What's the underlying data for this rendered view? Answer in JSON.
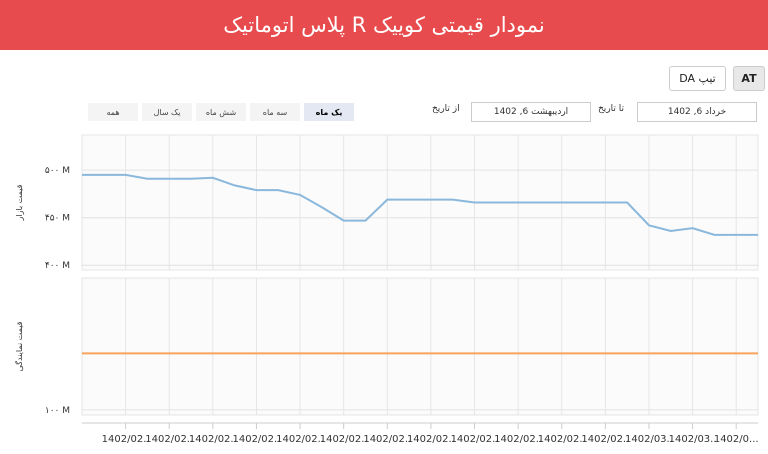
{
  "header": {
    "title": "نمودار قیمتی کوییک R پلاس اتوماتیک"
  },
  "trim_buttons": [
    "AT",
    "تیپ DA"
  ],
  "selected_trim": 0,
  "range_buttons": [
    "همه",
    "یک سال",
    "شش ماه",
    "سه ماه",
    "یک ماه"
  ],
  "selected_range": 4,
  "date_range": {
    "from_label": "از تاریخ",
    "from_value": "اردیبهشت 6, 1402",
    "to_label": "تا تاریخ",
    "to_value": "خرداد 6, 1402"
  },
  "chart_data": {
    "type": "line",
    "categories": [
      null,
      null,
      "1402/02..",
      null,
      "1402/02..",
      null,
      "1402/02..",
      null,
      "1402/02..",
      null,
      "1402/02..",
      null,
      "1402/02..",
      null,
      "1402/02..",
      null,
      "1402/02..",
      null,
      "1402/02..",
      null,
      "1402/02..",
      null,
      "1402/02..",
      null,
      "1402/02..",
      null,
      "1402/03..",
      null,
      "1402/03..",
      null,
      "1402/0...",
      null
    ],
    "ylabel": "قیمت بازار",
    "y2label": "قیمت نمایندگی",
    "ylim": [
      395,
      537
    ],
    "yticks": [
      {
        "value": 400,
        "label": "۴۰۰ M"
      },
      {
        "value": 450,
        "label": "۴۵۰ M"
      },
      {
        "value": 500,
        "label": "۵۰۰ M"
      }
    ],
    "y2lim": [
      94,
      254
    ],
    "y2ticks": [
      {
        "value": 100,
        "label": "۱۰۰ M"
      }
    ],
    "grid": true,
    "series": [
      {
        "color": "#8ab8dc",
        "values": [
          495,
          495,
          495,
          491,
          491,
          491,
          492,
          484,
          479,
          479,
          474,
          461,
          447,
          447,
          469,
          469,
          469,
          469,
          466,
          466,
          466,
          466,
          466,
          466,
          466,
          466,
          442,
          436,
          439,
          432,
          432,
          432
        ]
      },
      {
        "color": "#f7a35c",
        "axis": "y2",
        "values": [
          166,
          166,
          166,
          166,
          166,
          166,
          166,
          166,
          166,
          166,
          166,
          166,
          166,
          166,
          166,
          166,
          166,
          166,
          166,
          166,
          166,
          166,
          166,
          166,
          166,
          166,
          166,
          166,
          166,
          166,
          166,
          166
        ]
      }
    ]
  }
}
